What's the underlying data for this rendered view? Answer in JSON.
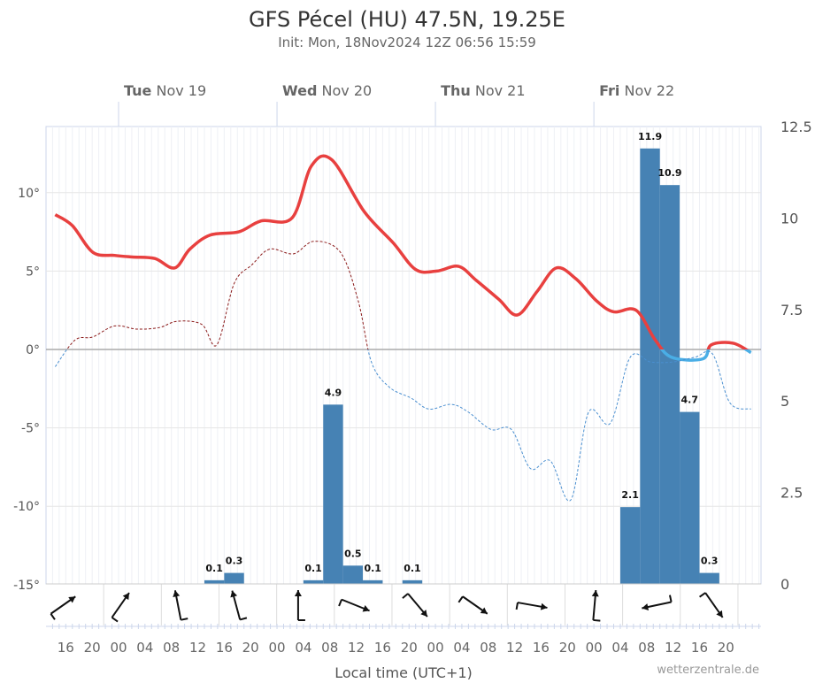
{
  "chart_data": {
    "type": "line",
    "title": "GFS Pécel (HU) 47.5N, 19.25E",
    "subtitle": "Init: Mon, 18Nov2024 12Z 06:56 15:59",
    "xlabel": "Local time (UTC+1)",
    "credit": "wetterzentrale.de",
    "x_unit": "hours since Mon 18 Nov 00:00 local",
    "xlim": [
      13,
      121.3
    ],
    "days": [
      {
        "hour": 24,
        "dow": "Tue",
        "date": "Nov 19"
      },
      {
        "hour": 48,
        "dow": "Wed",
        "date": "Nov 20"
      },
      {
        "hour": 72,
        "dow": "Thu",
        "date": "Nov 21"
      },
      {
        "hour": 96,
        "dow": "Fri",
        "date": "Nov 22"
      }
    ],
    "hour_ticks": [
      {
        "hour": 16,
        "label": "16"
      },
      {
        "hour": 20,
        "label": "20"
      },
      {
        "hour": 24,
        "label": "00"
      },
      {
        "hour": 28,
        "label": "04"
      },
      {
        "hour": 32,
        "label": "08"
      },
      {
        "hour": 36,
        "label": "12"
      },
      {
        "hour": 40,
        "label": "16"
      },
      {
        "hour": 44,
        "label": "20"
      },
      {
        "hour": 48,
        "label": "00"
      },
      {
        "hour": 52,
        "label": "04"
      },
      {
        "hour": 56,
        "label": "08"
      },
      {
        "hour": 60,
        "label": "12"
      },
      {
        "hour": 64,
        "label": "16"
      },
      {
        "hour": 68,
        "label": "20"
      },
      {
        "hour": 72,
        "label": "00"
      },
      {
        "hour": 76,
        "label": "04"
      },
      {
        "hour": 80,
        "label": "08"
      },
      {
        "hour": 84,
        "label": "12"
      },
      {
        "hour": 88,
        "label": "16"
      },
      {
        "hour": 92,
        "label": "20"
      },
      {
        "hour": 96,
        "label": "00"
      },
      {
        "hour": 100,
        "label": "04"
      },
      {
        "hour": 104,
        "label": "08"
      },
      {
        "hour": 108,
        "label": "12"
      },
      {
        "hour": 112,
        "label": "16"
      },
      {
        "hour": 116,
        "label": "20"
      }
    ],
    "temp_axis": {
      "ylim": [
        -15,
        14.2
      ],
      "ticks": [
        {
          "v": 10,
          "label": "10°"
        },
        {
          "v": 5,
          "label": "5°"
        },
        {
          "v": 0,
          "label": "0°"
        },
        {
          "v": -5,
          "label": "-5°"
        },
        {
          "v": -10,
          "label": "-10°"
        },
        {
          "v": -15,
          "label": "-15°"
        }
      ]
    },
    "precip_axis": {
      "ylim": [
        0,
        12.5
      ],
      "ticks": [
        {
          "v": 12.5,
          "label": "12.5"
        },
        {
          "v": 10,
          "label": "10"
        },
        {
          "v": 7.5,
          "label": "7.5"
        },
        {
          "v": 5,
          "label": "5"
        },
        {
          "v": 2.5,
          "label": "2.5"
        },
        {
          "v": 0,
          "label": "0"
        }
      ]
    },
    "series": [
      {
        "name": "Temperature",
        "unit": "°C",
        "color_warm": "#e8403f",
        "color_cold": "#4aaee6",
        "points": [
          [
            14.4,
            8.6
          ],
          [
            17,
            7.9
          ],
          [
            20.1,
            6.2
          ],
          [
            23.4,
            6.0
          ],
          [
            26.1,
            5.9
          ],
          [
            29.5,
            5.8
          ],
          [
            32.5,
            5.2
          ],
          [
            34.8,
            6.4
          ],
          [
            37.9,
            7.3
          ],
          [
            42.2,
            7.5
          ],
          [
            45.6,
            8.2
          ],
          [
            50.3,
            8.4
          ],
          [
            53.2,
            11.7
          ],
          [
            56.3,
            12.1
          ],
          [
            61.2,
            8.8
          ],
          [
            65.6,
            6.8
          ],
          [
            69,
            5.1
          ],
          [
            72.2,
            5.0
          ],
          [
            75.5,
            5.3
          ],
          [
            78.2,
            4.4
          ],
          [
            81.6,
            3.2
          ],
          [
            84.4,
            2.2
          ],
          [
            87.4,
            3.7
          ],
          [
            90.3,
            5.2
          ],
          [
            93.3,
            4.5
          ],
          [
            96.4,
            3.1
          ],
          [
            99,
            2.4
          ],
          [
            102.4,
            2.5
          ],
          [
            105.3,
            0.6
          ],
          [
            107.8,
            -0.5
          ],
          [
            112.5,
            -0.6
          ],
          [
            113.8,
            0.3
          ],
          [
            117.1,
            0.4
          ],
          [
            119.8,
            -0.2
          ],
          [
            123.5,
            -0.2
          ]
        ]
      },
      {
        "name": "Dew point",
        "unit": "°C",
        "color_warm": "#8b1a1a",
        "color_cold": "#4a8fd0",
        "points": [
          [
            14.4,
            -1.1
          ],
          [
            17.4,
            0.6
          ],
          [
            20.1,
            0.8
          ],
          [
            23.4,
            1.5
          ],
          [
            26.8,
            1.3
          ],
          [
            30.2,
            1.4
          ],
          [
            32.9,
            1.8
          ],
          [
            36.6,
            1.6
          ],
          [
            38.9,
            0.3
          ],
          [
            41.5,
            4.2
          ],
          [
            44.2,
            5.4
          ],
          [
            46.9,
            6.4
          ],
          [
            50.5,
            6.1
          ],
          [
            53.6,
            6.9
          ],
          [
            57.6,
            6.2
          ],
          [
            60.3,
            3.1
          ],
          [
            62.3,
            -0.8
          ],
          [
            65,
            -2.4
          ],
          [
            68.3,
            -3.1
          ],
          [
            71,
            -3.8
          ],
          [
            74.4,
            -3.5
          ],
          [
            77,
            -4.0
          ],
          [
            80.4,
            -5.1
          ],
          [
            83.5,
            -5.1
          ],
          [
            86.4,
            -7.6
          ],
          [
            89.4,
            -7.1
          ],
          [
            92.5,
            -9.6
          ],
          [
            95.2,
            -4.0
          ],
          [
            98.5,
            -4.7
          ],
          [
            101.5,
            -0.5
          ],
          [
            104.6,
            -0.8
          ],
          [
            107.9,
            -0.8
          ],
          [
            111.3,
            -0.5
          ],
          [
            114,
            -0.3
          ],
          [
            116.6,
            -3.4
          ],
          [
            119.8,
            -3.8
          ]
        ]
      }
    ],
    "precip": {
      "name": "Precipitation (mm/3h)",
      "color": "#4682b4",
      "bar_hours": 3,
      "bars": [
        {
          "start": 37,
          "value": 0.1,
          "label": "0.1"
        },
        {
          "start": 40,
          "value": 0.3,
          "label": "0.3"
        },
        {
          "start": 52,
          "value": 0.1,
          "label": "0.1"
        },
        {
          "start": 55,
          "value": 4.9,
          "label": "4.9"
        },
        {
          "start": 58,
          "value": 0.5,
          "label": "0.5"
        },
        {
          "start": 61,
          "value": 0.1,
          "label": "0.1"
        },
        {
          "start": 67,
          "value": 0.1,
          "label": "0.1"
        },
        {
          "start": 100,
          "value": 2.1,
          "label": "2.1"
        },
        {
          "start": 103,
          "value": 11.9,
          "label": "11.9"
        },
        {
          "start": 106,
          "value": 10.9,
          "label": "10.9"
        },
        {
          "start": 109,
          "value": 4.7,
          "label": "4.7"
        },
        {
          "start": 112,
          "value": 0.3,
          "label": "0.3"
        }
      ]
    },
    "wind": [
      {
        "hour": 15.6,
        "dir": 55
      },
      {
        "hour": 24.3,
        "dir": 35
      },
      {
        "hour": 33,
        "dir": 349
      },
      {
        "hour": 41.8,
        "dir": 345
      },
      {
        "hour": 51.2,
        "dir": 0
      },
      {
        "hour": 59.9,
        "dir": 112
      },
      {
        "hour": 69.3,
        "dir": 140
      },
      {
        "hour": 78,
        "dir": 125
      },
      {
        "hour": 86.7,
        "dir": 100
      },
      {
        "hour": 96.1,
        "dir": 5
      },
      {
        "hour": 105.5,
        "dir": 258
      },
      {
        "hour": 114.2,
        "dir": 145
      }
    ]
  }
}
